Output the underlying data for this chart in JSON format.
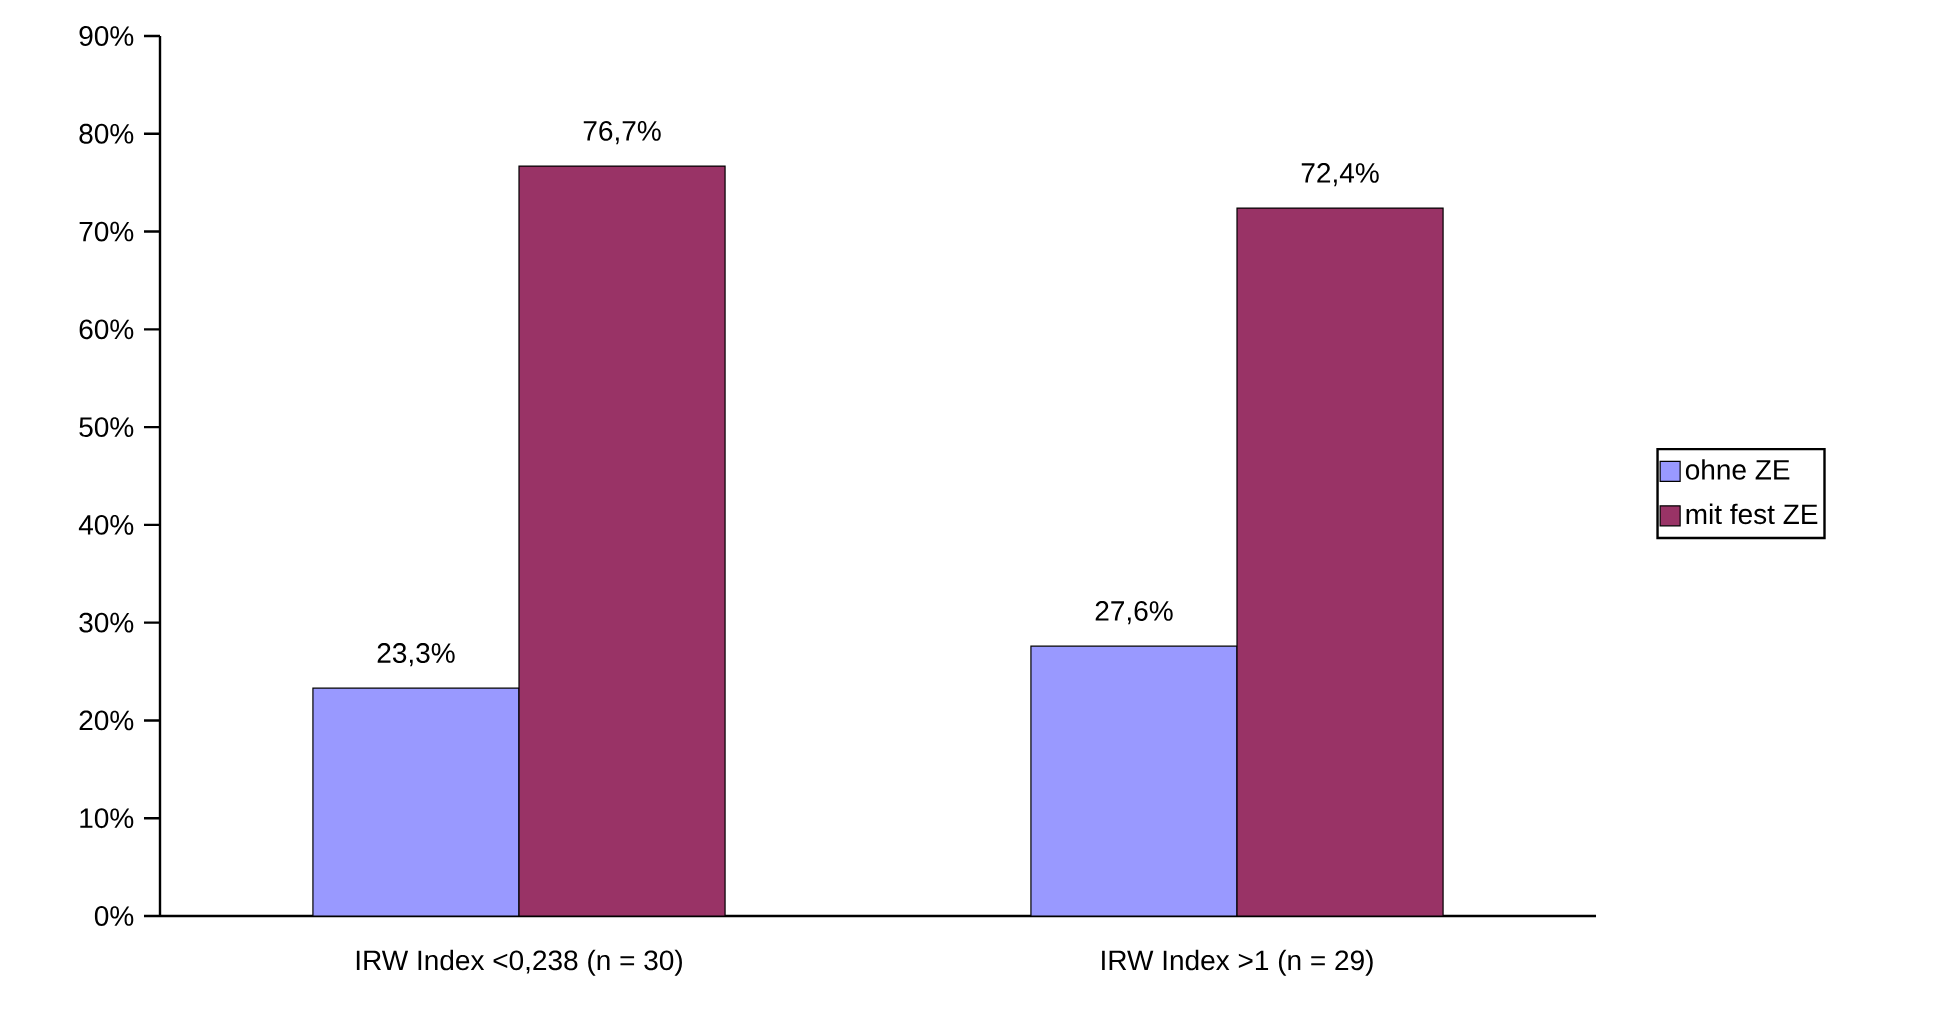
{
  "chart_data": {
    "type": "bar",
    "categories": [
      "IRW Index <0,238 (n = 30)",
      "IRW Index >1 (n = 29)"
    ],
    "series": [
      {
        "name": "ohne ZE",
        "color": "#9999ff",
        "values": [
          23.3,
          27.6
        ],
        "value_labels": [
          "23,3%",
          "27,6%"
        ]
      },
      {
        "name": "mit fest ZE",
        "color": "#993366",
        "values": [
          76.7,
          72.4
        ],
        "value_labels": [
          "76,7%",
          "72,4%"
        ]
      }
    ],
    "ylim": [
      0,
      90
    ],
    "yticks": [
      {
        "value": 0,
        "label": "0%"
      },
      {
        "value": 10,
        "label": "10%"
      },
      {
        "value": 20,
        "label": "20%"
      },
      {
        "value": 30,
        "label": "30%"
      },
      {
        "value": 40,
        "label": "40%"
      },
      {
        "value": 50,
        "label": "50%"
      },
      {
        "value": 60,
        "label": "60%"
      },
      {
        "value": 70,
        "label": "70%"
      },
      {
        "value": 80,
        "label": "80%"
      },
      {
        "value": 90,
        "label": "90%"
      }
    ],
    "grid": false,
    "legend": "right"
  }
}
